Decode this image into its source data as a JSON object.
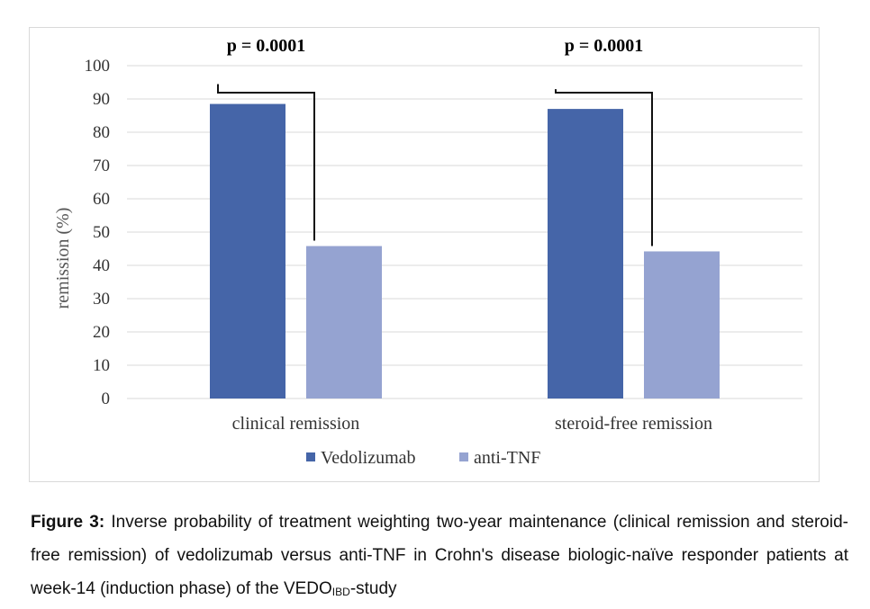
{
  "chart_data": {
    "type": "bar",
    "categories": [
      "clinical remission",
      "steroid-free remission"
    ],
    "series": [
      {
        "name": "Vedolizumab",
        "color": "#4565a8",
        "values": [
          88.5,
          87
        ]
      },
      {
        "name": "anti-TNF",
        "color": "#95a3d1",
        "values": [
          45.8,
          44.2
        ]
      }
    ],
    "ylabel": "remission (%)",
    "ylim": [
      0,
      100
    ],
    "yticks": [
      0,
      10,
      20,
      30,
      40,
      50,
      60,
      70,
      80,
      90,
      100
    ],
    "grid": true,
    "legend_position": "bottom",
    "annotations": [
      "p = 0.0001",
      "p = 0.0001"
    ]
  },
  "caption": {
    "label": "Figure 3:",
    "text_before_sub": " Inverse probability of treatment weighting two-year maintenance (clinical remission and steroid-free remission) of vedolizumab versus anti-TNF in Crohn's disease biologic-naïve responder patients at week-14 (induction phase) of the VEDO",
    "subscript": "IBD",
    "text_after_sub": "-study"
  }
}
